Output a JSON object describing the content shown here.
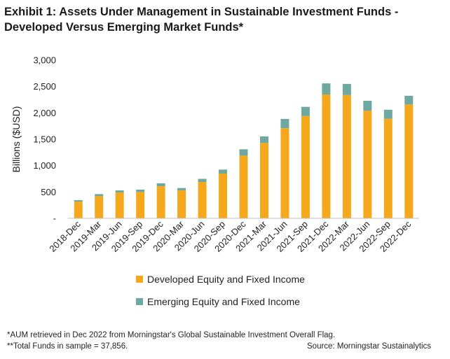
{
  "title_line1": "Exhibit 1: Assets Under Management in Sustainable Investment Funds -",
  "title_line2": "Developed Versus Emerging Market Funds*",
  "footnote1": "*AUM retrieved in Dec 2022 from Morningstar's Global Sustainable Investment Overall Flag.",
  "footnote2": "**Total Funds in sample = 37,856.",
  "source": "Source: Morningstar Sustainalytics",
  "colors": {
    "developed": "#F5A81C",
    "emerging": "#6FA8A0",
    "axis": "#bfbfbf"
  },
  "chart_data": {
    "type": "bar",
    "stacked": true,
    "categories": [
      "2018-Dec",
      "2019-Mar",
      "2019-Jun",
      "2019-Sep",
      "2019-Dec",
      "2020-Mar",
      "2020-Jun",
      "2020-Sep",
      "2020-Dec",
      "2021-Mar",
      "2021-Jun",
      "2021-Sep",
      "2021-Dec",
      "2022-Mar",
      "2022-Jun",
      "2022-Sep",
      "2022-Dec"
    ],
    "series": [
      {
        "name": "Developed Equity and Fixed Income",
        "values": [
          315,
          420,
          490,
          500,
          610,
          530,
          690,
          850,
          1190,
          1430,
          1710,
          1940,
          2350,
          2340,
          2040,
          1890,
          2160
        ]
      },
      {
        "name": "Emerging Equity and Fixed Income",
        "values": [
          30,
          40,
          40,
          45,
          55,
          45,
          60,
          75,
          120,
          125,
          175,
          175,
          210,
          210,
          190,
          170,
          165
        ]
      }
    ],
    "ylabel": "Billions ($USD)",
    "xlabel": "",
    "ylim": [
      0,
      3000
    ],
    "yticks": [
      0,
      500,
      1000,
      1500,
      2000,
      2500,
      3000
    ],
    "ytick_labels": [
      "-",
      "500",
      "1,000",
      "1,500",
      "2,000",
      "2,500",
      "3,000"
    ],
    "grid": false,
    "legend_position": "bottom"
  }
}
